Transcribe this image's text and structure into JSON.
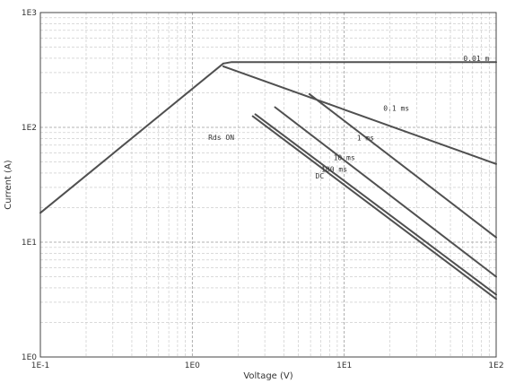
{
  "chart_data": {
    "type": "line",
    "title": "",
    "xlabel": "Voltage (V)",
    "ylabel": "Current (A)",
    "xscale": "log",
    "yscale": "log",
    "xlim": [
      0.1,
      100
    ],
    "ylim": [
      1,
      1000
    ],
    "grid": true,
    "x_tick_labels": [
      "1E-1",
      "1E0",
      "1E1",
      "1E2"
    ],
    "y_tick_labels": [
      "1E0",
      "1E1",
      "1E2",
      "1E3"
    ],
    "line_color": "#505050",
    "series": [
      {
        "name": "Rds ON",
        "x": [
          0.1,
          1.6
        ],
        "y": [
          18,
          360
        ]
      },
      {
        "name": "0.01 ms",
        "x": [
          1.6,
          1.8,
          100
        ],
        "y": [
          360,
          370,
          370
        ]
      },
      {
        "name": "0.1 ms",
        "x": [
          1.6,
          100
        ],
        "y": [
          340,
          48
        ]
      },
      {
        "name": "1 ms",
        "x": [
          5.9,
          100
        ],
        "y": [
          195,
          11
        ]
      },
      {
        "name": "10 ms",
        "x": [
          3.5,
          100
        ],
        "y": [
          150,
          5
        ]
      },
      {
        "name": "100 ms",
        "x": [
          2.6,
          100
        ],
        "y": [
          130,
          3.5
        ]
      },
      {
        "name": "DC",
        "x": [
          2.5,
          100
        ],
        "y": [
          125,
          3.2
        ]
      }
    ],
    "annotations": [
      {
        "text": "0.01 m",
        "x": 74,
        "y": 380
      },
      {
        "text": "0.1 ms",
        "x": 22,
        "y": 140
      },
      {
        "text": "1 ms",
        "x": 13.8,
        "y": 77
      },
      {
        "text": "10 ms",
        "x": 10,
        "y": 52
      },
      {
        "text": "100 ms",
        "x": 8.6,
        "y": 41
      },
      {
        "text": "DC",
        "x": 6.9,
        "y": 36
      },
      {
        "text": "Rds ON",
        "x": 1.55,
        "y": 78
      }
    ]
  }
}
